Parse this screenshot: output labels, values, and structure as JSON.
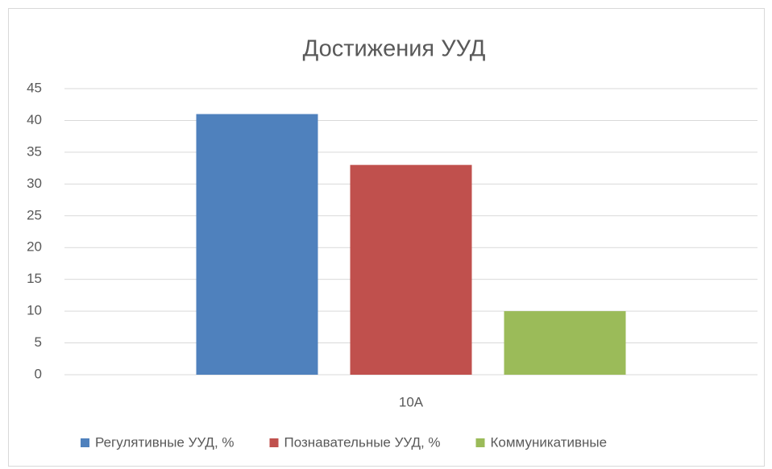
{
  "chart_data": {
    "type": "bar",
    "title": "Достижения УУД",
    "categories": [
      "10А"
    ],
    "series": [
      {
        "name": "Регулятивные УУД, %",
        "color": "#4f81bd",
        "values": [
          41
        ]
      },
      {
        "name": "Познавательные УУД, %",
        "color": "#c0504d",
        "values": [
          33
        ]
      },
      {
        "name": "Коммуникативные",
        "color": "#9bbb59",
        "values": [
          10
        ]
      }
    ],
    "ylim": [
      0,
      45
    ],
    "yticks": [
      0,
      5,
      10,
      15,
      20,
      25,
      30,
      35,
      40,
      45
    ],
    "grid": true,
    "legend": "bottom"
  }
}
